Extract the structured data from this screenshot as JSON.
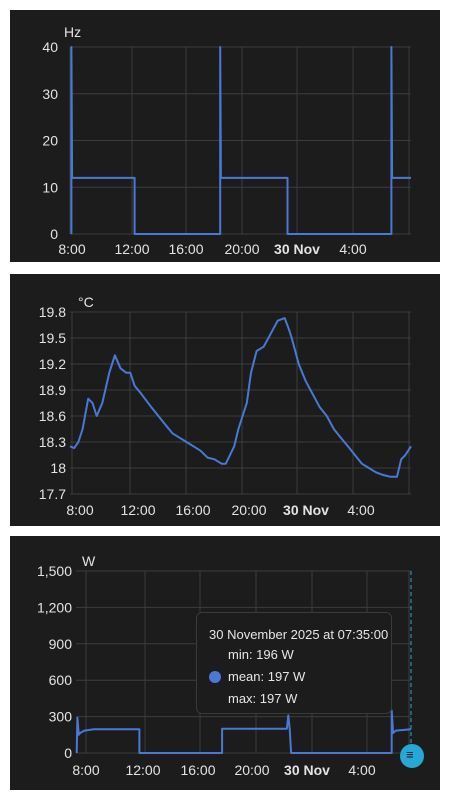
{
  "chart_data": [
    {
      "type": "line",
      "ylabel": "Hz",
      "ylim": [
        0,
        40
      ],
      "y_ticks": [
        "0",
        "10",
        "20",
        "30",
        "40"
      ],
      "x_ticks": [
        {
          "label": "8:00",
          "bold": false
        },
        {
          "label": "12:00",
          "bold": false
        },
        {
          "label": "16:00",
          "bold": false
        },
        {
          "label": "20:00",
          "bold": false
        },
        {
          "label": "30 Nov",
          "bold": true
        },
        {
          "label": "4:00",
          "bold": false
        }
      ],
      "grid": true,
      "series": [
        {
          "color": "#4a78d6",
          "x": [
            7.8,
            7.8,
            7.85,
            7.9,
            12.3,
            12.3,
            18.4,
            18.4,
            18.45,
            18.5,
            23.2,
            23.2,
            30.6,
            30.6,
            30.65,
            30.7,
            32.0
          ],
          "y": [
            0,
            40,
            12,
            12,
            12,
            0,
            0,
            40,
            12,
            12,
            12,
            0,
            0,
            40,
            12,
            12,
            12
          ]
        }
      ]
    },
    {
      "type": "line",
      "ylabel": "°C",
      "ylim": [
        17.7,
        19.8
      ],
      "y_ticks": [
        "17.7",
        "18",
        "18.3",
        "18.6",
        "18.9",
        "19.2",
        "19.5",
        "19.8"
      ],
      "x_ticks": [
        {
          "label": "8:00",
          "bold": false
        },
        {
          "label": "12:00",
          "bold": false
        },
        {
          "label": "16:00",
          "bold": false
        },
        {
          "label": "20:00",
          "bold": false
        },
        {
          "label": "30 Nov",
          "bold": true
        },
        {
          "label": "4:00",
          "bold": false
        }
      ],
      "grid": true,
      "series": [
        {
          "color": "#4a78d6",
          "x": [
            7.7,
            8.0,
            8.3,
            8.6,
            9.0,
            9.3,
            9.6,
            10.0,
            10.5,
            10.9,
            11.3,
            11.7,
            12.0,
            12.3,
            12.8,
            13.5,
            14.0,
            14.5,
            15.0,
            15.5,
            16.0,
            16.5,
            17.0,
            17.5,
            18.0,
            18.5,
            18.8,
            19.1,
            19.4,
            19.7,
            20.0,
            20.3,
            20.6,
            21.0,
            21.5,
            22.0,
            22.5,
            23.0,
            23.3,
            23.5,
            24.0,
            24.5,
            25.0,
            25.5,
            26.0,
            26.5,
            27.0,
            27.5,
            28.0,
            28.5,
            29.0,
            29.5,
            30.0,
            30.5,
            31.0,
            31.3,
            31.6,
            32.0
          ],
          "y": [
            18.25,
            18.23,
            18.3,
            18.45,
            18.8,
            18.75,
            18.6,
            18.75,
            19.1,
            19.3,
            19.15,
            19.1,
            19.1,
            18.95,
            18.85,
            18.7,
            18.6,
            18.5,
            18.4,
            18.35,
            18.3,
            18.25,
            18.2,
            18.12,
            18.1,
            18.05,
            18.05,
            18.15,
            18.25,
            18.45,
            18.6,
            18.75,
            19.1,
            19.35,
            19.4,
            19.55,
            19.7,
            19.73,
            19.6,
            19.5,
            19.2,
            19.0,
            18.85,
            18.7,
            18.6,
            18.45,
            18.35,
            18.25,
            18.15,
            18.05,
            18.0,
            17.95,
            17.92,
            17.9,
            17.9,
            18.1,
            18.15,
            18.25
          ]
        }
      ]
    },
    {
      "type": "line",
      "ylabel": "W",
      "ylim": [
        0,
        1500
      ],
      "y_ticks": [
        "0",
        "300",
        "600",
        "900",
        "1,200",
        "1,500"
      ],
      "x_ticks": [
        {
          "label": "8:00",
          "bold": false
        },
        {
          "label": "12:00",
          "bold": false
        },
        {
          "label": "16:00",
          "bold": false
        },
        {
          "label": "20:00",
          "bold": false
        },
        {
          "label": "30 Nov",
          "bold": true
        },
        {
          "label": "4:00",
          "bold": false
        }
      ],
      "grid": true,
      "series": [
        {
          "color": "#4a78d6",
          "x": [
            7.75,
            7.8,
            7.9,
            8.0,
            8.3,
            9.0,
            12.3,
            12.3,
            18.3,
            18.3,
            18.5,
            19.0,
            19.1,
            23.0,
            23.1,
            23.2,
            23.3,
            30.6,
            30.6,
            30.7,
            30.9,
            32.0
          ],
          "y": [
            0,
            290,
            150,
            165,
            185,
            195,
            195,
            0,
            0,
            200,
            200,
            200,
            200,
            200,
            310,
            200,
            0,
            0,
            350,
            165,
            185,
            196
          ]
        }
      ],
      "tooltip": {
        "title": "30 November 2025 at 07:35:00",
        "min": "min: 196 W",
        "mean": "mean: 197 W",
        "max": "max: 197 W"
      }
    }
  ]
}
